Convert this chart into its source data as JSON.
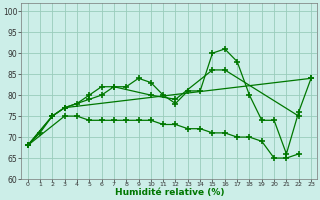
{
  "xlabel": "Humidité relative (%)",
  "background_color": "#cceee8",
  "grid_color": "#99ccbb",
  "line_color": "#007700",
  "xlim": [
    -0.5,
    23.5
  ],
  "ylim": [
    60,
    102
  ],
  "yticks": [
    60,
    65,
    70,
    75,
    80,
    85,
    90,
    95,
    100
  ],
  "xticks": [
    0,
    1,
    2,
    3,
    4,
    5,
    6,
    7,
    8,
    9,
    10,
    11,
    12,
    13,
    14,
    15,
    16,
    17,
    18,
    19,
    20,
    21,
    22,
    23
  ],
  "series": [
    {
      "x": [
        0,
        1,
        2,
        3,
        4,
        5,
        6,
        7,
        8,
        9,
        10,
        11,
        12,
        13,
        14,
        15,
        16,
        17,
        18,
        19,
        20,
        21,
        22,
        23
      ],
      "y": [
        68,
        71,
        75,
        77,
        78,
        80,
        82,
        82,
        82,
        84,
        83,
        80,
        78,
        81,
        81,
        90,
        91,
        88,
        80,
        74,
        74,
        66,
        76,
        84
      ]
    },
    {
      "x": [
        0,
        2,
        3,
        5,
        6,
        7,
        10,
        12,
        15,
        16,
        22
      ],
      "y": [
        68,
        75,
        77,
        79,
        80,
        82,
        80,
        79,
        86,
        86,
        75
      ]
    },
    {
      "x": [
        0,
        2,
        3,
        23
      ],
      "y": [
        68,
        75,
        77,
        84
      ]
    },
    {
      "x": [
        0,
        3,
        4,
        5,
        6,
        7,
        8,
        9,
        10,
        11,
        12,
        13,
        14,
        15,
        16,
        17,
        18,
        19,
        20,
        21,
        22
      ],
      "y": [
        68,
        75,
        75,
        74,
        74,
        74,
        74,
        74,
        74,
        73,
        73,
        72,
        72,
        71,
        71,
        70,
        70,
        69,
        65,
        65,
        66
      ]
    }
  ]
}
